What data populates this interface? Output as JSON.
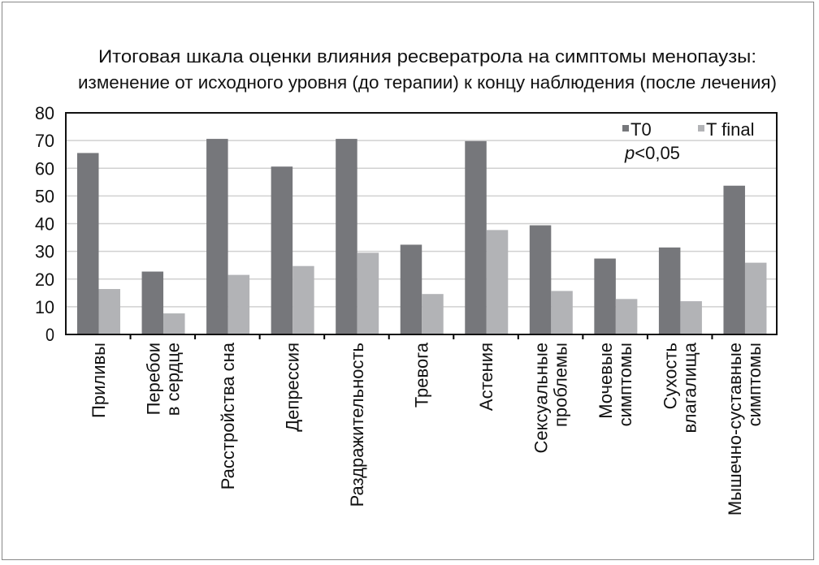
{
  "chart_data": {
    "type": "bar",
    "title": [
      "Итоговая шкала оценки влияния ресвератрола на симптомы менопаузы:",
      "изменение от исходного уровня (до терапии) к концу наблюдения (после лечения)"
    ],
    "categories": [
      [
        "Приливы"
      ],
      [
        "Перебои",
        "в сердце"
      ],
      [
        "Расстройства сна"
      ],
      [
        "Депрессия"
      ],
      [
        "Раздражительность"
      ],
      [
        "Тревога"
      ],
      [
        "Астения"
      ],
      [
        "Сексуальные",
        "проблемы"
      ],
      [
        "Мочевые",
        "симптомы"
      ],
      [
        "Сухость",
        "влагалища"
      ],
      [
        "Мышечно-суставные",
        "симптомы"
      ]
    ],
    "series": [
      {
        "name": "T0",
        "color": "#76777b",
        "values": [
          65.5,
          22.7,
          70.6,
          60.6,
          70.6,
          32.4,
          69.8,
          39.4,
          27.4,
          31.4,
          53.7
        ]
      },
      {
        "name": "T final",
        "color": "#b2b3b6",
        "values": [
          16.4,
          7.6,
          21.5,
          24.7,
          29.5,
          14.6,
          37.7,
          15.7,
          12.8,
          12.0,
          25.9
        ]
      }
    ],
    "annotation": "p<0,05",
    "annotation_parts": {
      "p": "p",
      "rest": "<0,05"
    },
    "yticks": [
      "0",
      "10",
      "20",
      "30",
      "40",
      "50",
      "60",
      "70",
      "80"
    ],
    "ylim": [
      0,
      80
    ],
    "grid": true,
    "legend": "top-right"
  }
}
